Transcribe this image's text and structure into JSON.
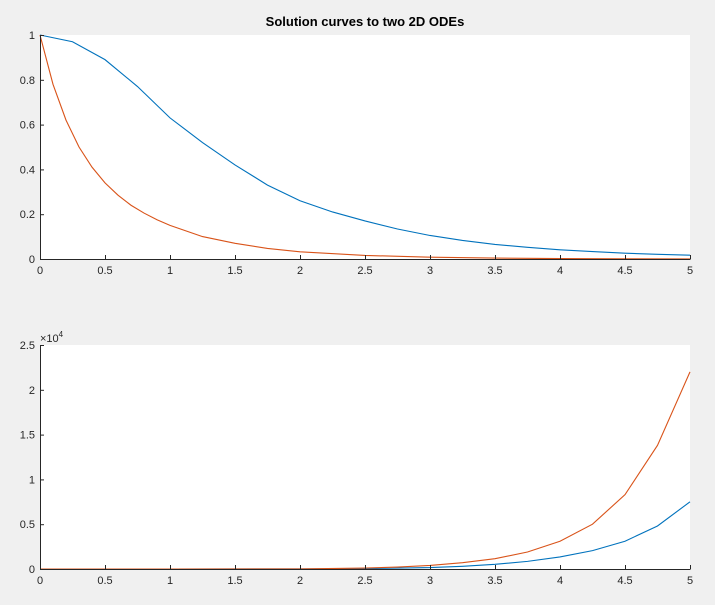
{
  "chart_data": [
    {
      "type": "line",
      "title": "Solution curves to two 2D ODEs",
      "xlim": [
        0,
        5
      ],
      "ylim": [
        0,
        1
      ],
      "xticks": [
        0,
        0.5,
        1,
        1.5,
        2,
        2.5,
        3,
        3.5,
        4,
        4.5,
        5
      ],
      "xtick_labels": [
        "0",
        "0.5",
        "1",
        "1.5",
        "2",
        "2.5",
        "3",
        "3.5",
        "4",
        "4.5",
        "5"
      ],
      "yticks": [
        0,
        0.2,
        0.4,
        0.6,
        0.8,
        1
      ],
      "ytick_labels": [
        "0",
        "0.2",
        "0.4",
        "0.6",
        "0.8",
        "1"
      ],
      "y_exponent_label": "",
      "grid": false,
      "series": [
        {
          "color": "#0072BD",
          "x": [
            0,
            0.25,
            0.5,
            0.75,
            1,
            1.25,
            1.5,
            1.75,
            2,
            2.25,
            2.5,
            2.75,
            3,
            3.25,
            3.5,
            3.75,
            4,
            4.25,
            4.5,
            4.75,
            5
          ],
          "y": [
            1.0,
            0.97,
            0.89,
            0.77,
            0.63,
            0.52,
            0.42,
            0.33,
            0.26,
            0.21,
            0.17,
            0.134,
            0.105,
            0.083,
            0.065,
            0.052,
            0.041,
            0.033,
            0.026,
            0.021,
            0.017
          ]
        },
        {
          "color": "#D95319",
          "x": [
            0,
            0.1,
            0.2,
            0.3,
            0.4,
            0.5,
            0.6,
            0.7,
            0.8,
            0.9,
            1,
            1.25,
            1.5,
            1.75,
            2,
            2.5,
            3,
            3.5,
            4,
            4.5,
            5
          ],
          "y": [
            1.0,
            0.78,
            0.62,
            0.5,
            0.41,
            0.34,
            0.285,
            0.24,
            0.205,
            0.175,
            0.15,
            0.1,
            0.07,
            0.047,
            0.032,
            0.016,
            0.008,
            0.004,
            0.002,
            0.001,
            0.0005
          ]
        }
      ]
    },
    {
      "type": "line",
      "title": "",
      "xlim": [
        0,
        5
      ],
      "ylim": [
        0,
        25000
      ],
      "xticks": [
        0,
        0.5,
        1,
        1.5,
        2,
        2.5,
        3,
        3.5,
        4,
        4.5,
        5
      ],
      "xtick_labels": [
        "0",
        "0.5",
        "1",
        "1.5",
        "2",
        "2.5",
        "3",
        "3.5",
        "4",
        "4.5",
        "5"
      ],
      "yticks": [
        0,
        5000,
        10000,
        15000,
        20000,
        25000
      ],
      "ytick_labels": [
        "0",
        "0.5",
        "1",
        "1.5",
        "2",
        "2.5"
      ],
      "y_exponent_label": "×10",
      "y_exponent_power": "4",
      "grid": false,
      "series": [
        {
          "color": "#0072BD",
          "x": [
            0,
            1,
            2,
            2.5,
            3,
            3.25,
            3.5,
            3.75,
            4,
            4.25,
            4.5,
            4.75,
            5
          ],
          "y": [
            0,
            0,
            5,
            40,
            160,
            300,
            520,
            850,
            1350,
            2050,
            3100,
            4800,
            7500
          ]
        },
        {
          "color": "#D95319",
          "x": [
            0,
            1,
            2,
            2.5,
            2.75,
            3,
            3.25,
            3.5,
            3.75,
            4,
            4.25,
            4.5,
            4.75,
            5
          ],
          "y": [
            0,
            0,
            10,
            100,
            220,
            400,
            700,
            1150,
            1900,
            3100,
            5000,
            8300,
            13800,
            22000
          ]
        }
      ]
    }
  ]
}
